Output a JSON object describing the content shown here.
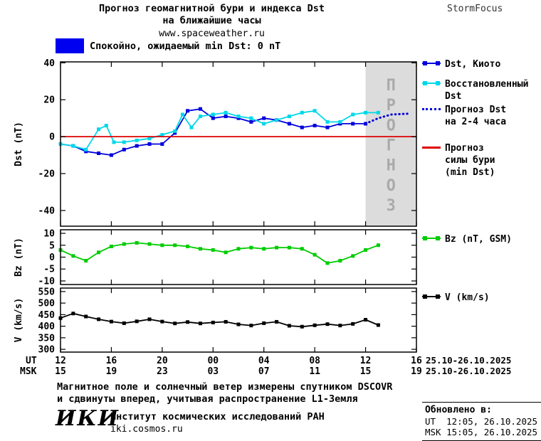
{
  "header": {
    "title_line1": "Прогноз геомагнитной бури и индекса Dst",
    "title_line2": "на ближайшие часы",
    "site": "www.spaceweather.ru",
    "brand": "StormFocus"
  },
  "status": {
    "label": "Спокойно, ожидаемый min Dst: 0 nT"
  },
  "colors": {
    "dst_kyoto": "#0000dd",
    "restored_dst": "#00d8e8",
    "forecast_dst": "#0000dd",
    "storm_forecast": "#dd0000",
    "bz": "#00cc00",
    "v": "#000000",
    "status_swatch": "#0000f0",
    "forecast_shade": "#dcdcdc",
    "forecast_label": "#aaaaaa"
  },
  "legend": {
    "items": [
      {
        "label": "Dst, Киото",
        "color_key": "dst_kyoto",
        "swatch": "markers"
      },
      {
        "label": "Восстановленный\nDst",
        "color_key": "restored_dst",
        "swatch": "markers"
      },
      {
        "label": "Прогноз Dst\nна 2-4 часа",
        "color_key": "forecast_dst",
        "swatch": "dotted"
      },
      {
        "label": "Прогноз\nсилы бури\n(min Dst)",
        "color_key": "storm_forecast",
        "swatch": "plain"
      },
      {
        "label": "Bz (nT, GSM)",
        "color_key": "bz",
        "swatch": "markers"
      },
      {
        "label": "V (km/s)",
        "color_key": "v",
        "swatch": "markers"
      }
    ]
  },
  "xaxis": {
    "row1_label": "UT",
    "row2_label": "MSK",
    "ut_labels": [
      "12",
      "16",
      "20",
      "00",
      "04",
      "08",
      "12",
      "16"
    ],
    "msk_labels": [
      "15",
      "19",
      "23",
      "03",
      "07",
      "11",
      "15",
      "19"
    ],
    "date_label": "25.10-26.10.2025"
  },
  "chart_data": [
    {
      "type": "line",
      "title": "Dst index and forecast",
      "ylabel": "Dst (nT)",
      "ylim": [
        -48.5,
        40.5
      ],
      "yticks": [
        40,
        20,
        0,
        -20,
        -40
      ],
      "xlim": [
        0,
        28
      ],
      "xticks": [
        0,
        4,
        8,
        12,
        16,
        20,
        24,
        28
      ],
      "x_unit": "hours from 12 UT 25.10.2025",
      "forecast_region": {
        "x0": 24,
        "x1": 28,
        "label": "ПРОГНОЗ"
      },
      "series": [
        {
          "name": "Dst, Киото",
          "color_key": "dst_kyoto",
          "marker": true,
          "x": [
            0,
            1,
            2,
            3,
            4,
            5,
            6,
            7,
            8,
            9,
            10,
            11,
            12,
            13,
            14,
            15,
            16,
            17,
            18,
            19,
            20,
            21,
            22,
            23,
            24
          ],
          "values": [
            -4,
            -5,
            -8,
            -9,
            -10,
            -7,
            -5,
            -4,
            -4,
            2,
            14,
            15,
            10,
            11,
            10,
            8,
            10,
            9,
            7,
            5,
            6,
            5,
            7,
            7,
            7
          ]
        },
        {
          "name": "Восстановленный Dst",
          "color_key": "restored_dst",
          "marker": true,
          "x": [
            0,
            1,
            2,
            3,
            3.6,
            4.2,
            5,
            6,
            7,
            8,
            9,
            9.6,
            10.3,
            11,
            12,
            13,
            14,
            15,
            16,
            17,
            18,
            19,
            20,
            21,
            22,
            23,
            24,
            25
          ],
          "values": [
            -4,
            -5,
            -7,
            4,
            6,
            -3,
            -3,
            -2,
            -1,
            1,
            3,
            12,
            5,
            11,
            12,
            13,
            11,
            10,
            7,
            9,
            11,
            13,
            14,
            8,
            8,
            12,
            13,
            13
          ]
        },
        {
          "name": "Прогноз Dst на 2-4 часа",
          "color_key": "forecast_dst",
          "style": "dotted",
          "x": [
            24,
            25,
            26,
            27.5
          ],
          "values": [
            7,
            10,
            12,
            12.5
          ]
        },
        {
          "name": "Прогноз силы бури (min Dst)",
          "color_key": "storm_forecast",
          "x": [
            0,
            28
          ],
          "values": [
            0,
            0
          ]
        }
      ]
    },
    {
      "type": "line",
      "title": "Bz GSM",
      "ylabel": "Bz (nT)",
      "ylim": [
        -11.5,
        11.5
      ],
      "yticks": [
        10,
        5,
        0,
        -5,
        -10
      ],
      "xlim": [
        0,
        28
      ],
      "xticks": [
        0,
        4,
        8,
        12,
        16,
        20,
        24,
        28
      ],
      "series": [
        {
          "name": "Bz (nT, GSM)",
          "color_key": "bz",
          "marker": true,
          "x": [
            0,
            1,
            2,
            3,
            4,
            5,
            6,
            7,
            8,
            9,
            10,
            11,
            12,
            13,
            14,
            15,
            16,
            17,
            18,
            19,
            20,
            21,
            22,
            23,
            24,
            25
          ],
          "values": [
            3,
            0.5,
            -1.5,
            2,
            4.5,
            5.5,
            6,
            5.5,
            5,
            5,
            4.5,
            3.5,
            3,
            2,
            3.5,
            4,
            3.5,
            4,
            4,
            3.5,
            1,
            -2.5,
            -1.5,
            0.5,
            3,
            5
          ]
        }
      ]
    },
    {
      "type": "line",
      "title": "Solar wind speed",
      "ylabel": "V (km/s)",
      "ylim": [
        288,
        565
      ],
      "yticks": [
        550,
        500,
        450,
        400,
        350,
        300
      ],
      "xlim": [
        0,
        28
      ],
      "xticks": [
        0,
        4,
        8,
        12,
        16,
        20,
        24,
        28
      ],
      "series": [
        {
          "name": "V (km/s)",
          "color_key": "v",
          "marker": true,
          "x": [
            0,
            1,
            2,
            3,
            4,
            5,
            6,
            7,
            8,
            9,
            10,
            11,
            12,
            13,
            14,
            15,
            16,
            17,
            18,
            19,
            20,
            21,
            22,
            23,
            24,
            25
          ],
          "values": [
            435,
            455,
            442,
            430,
            420,
            413,
            421,
            430,
            420,
            412,
            418,
            412,
            416,
            419,
            408,
            403,
            413,
            419,
            402,
            398,
            404,
            409,
            403,
            410,
            428,
            405
          ]
        }
      ]
    }
  ],
  "footer": {
    "note_line1": "Магнитное поле и солнечный ветер измерены спутником DSCOVR",
    "note_line2": "и сдвинуты вперед, учитывая распространение L1-Земля",
    "logo": "ИКИ",
    "institute": "Институт космических исследований РАН",
    "site": "iki.cosmos.ru",
    "updated_label": "Обновлено в:",
    "updated_ut": "UT  12:05, 26.10.2025",
    "updated_msk": "MSK 15:05, 26.10.2025"
  }
}
